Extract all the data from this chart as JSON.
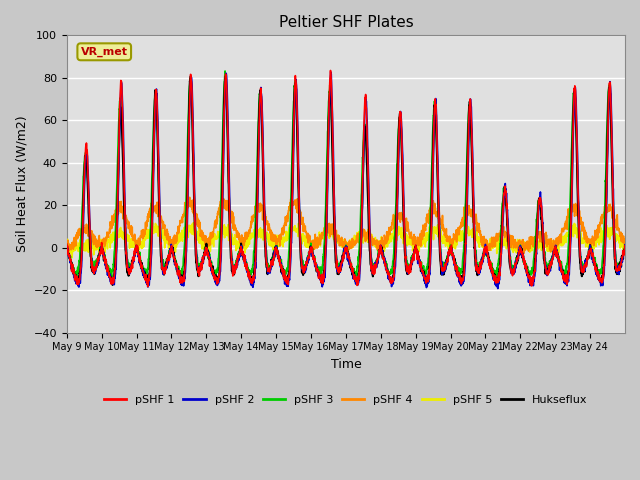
{
  "title": "Peltier SHF Plates",
  "xlabel": "Time",
  "ylabel": "Soil Heat Flux (W/m2)",
  "ylim": [
    -40,
    100
  ],
  "yticks": [
    -40,
    -20,
    0,
    20,
    40,
    60,
    80,
    100
  ],
  "n_days": 16,
  "series_colors": {
    "pSHF 1": "#ff0000",
    "pSHF 2": "#0000cc",
    "pSHF 3": "#00cc00",
    "pSHF 4": "#ff8800",
    "pSHF 5": "#eeee00",
    "Hukseflux": "#000000"
  },
  "vr_met_box_color": "#eeee99",
  "vr_met_text_color": "#bb0000",
  "vr_met_border_color": "#999900",
  "fig_bg_color": "#c8c8c8",
  "plot_bg_color": "#e0e0e0",
  "grid_color": "#ffffff",
  "tick_labels": [
    "May 9",
    "May 10",
    "May 11",
    "May 12",
    "May 13",
    "May 14",
    "May 15",
    "May 16",
    "May 17",
    "May 18",
    "May 19",
    "May 20",
    "May 21",
    "May 22",
    "May 23",
    "May 24"
  ],
  "day_peaks_red": [
    50,
    80,
    76,
    82,
    83,
    75,
    80,
    84,
    72,
    65,
    70,
    71,
    30,
    26,
    77,
    79
  ],
  "day_peaks_blue": [
    47,
    79,
    75,
    82,
    83,
    75,
    79,
    83,
    71,
    64,
    69,
    70,
    30,
    26,
    76,
    78
  ],
  "day_peaks_green": [
    46,
    72,
    73,
    81,
    82,
    74,
    78,
    76,
    59,
    63,
    68,
    69,
    29,
    25,
    75,
    77
  ],
  "day_peaks_black": [
    45,
    67,
    75,
    82,
    82,
    75,
    79,
    76,
    58,
    64,
    69,
    70,
    29,
    25,
    75,
    77
  ],
  "day_peaks_orange": [
    10,
    20,
    20,
    22,
    22,
    20,
    22,
    10,
    8,
    17,
    19,
    19,
    8,
    7,
    20,
    20
  ],
  "day_peaks_yellow": [
    2,
    8,
    10,
    10,
    9,
    9,
    10,
    9,
    7,
    8,
    9,
    9,
    4,
    3,
    9,
    9
  ],
  "night_base": -20,
  "points_per_day": 144
}
